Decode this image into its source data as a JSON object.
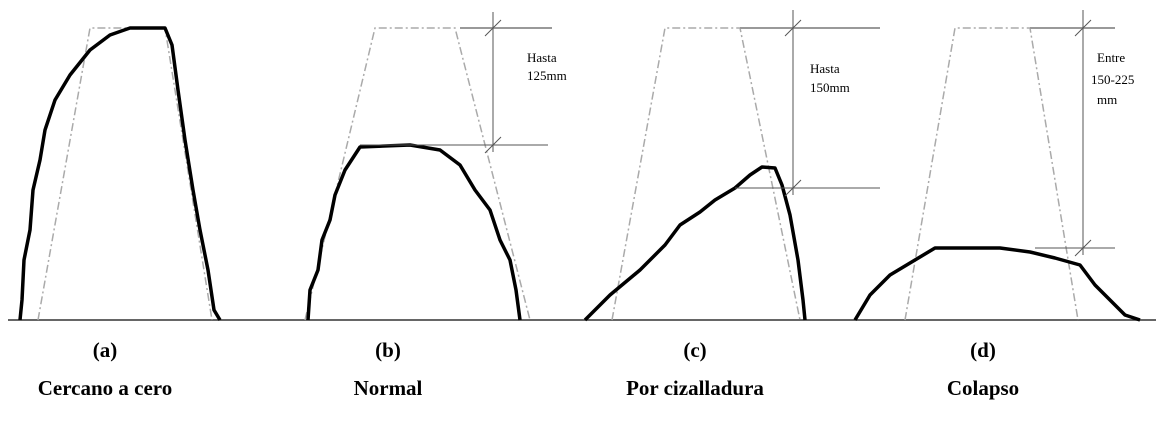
{
  "panels": [
    {
      "letter": "(a)",
      "caption": "Cercano a cero"
    },
    {
      "letter": "(b)",
      "caption": "Normal",
      "annotation": [
        "Hasta",
        "125mm"
      ]
    },
    {
      "letter": "(c)",
      "caption": "Por cizalladura",
      "annotation": [
        "Hasta",
        "150mm"
      ]
    },
    {
      "letter": "(d)",
      "caption": "Colapso",
      "annotation": [
        "Entre",
        "150-225",
        "mm"
      ]
    }
  ]
}
